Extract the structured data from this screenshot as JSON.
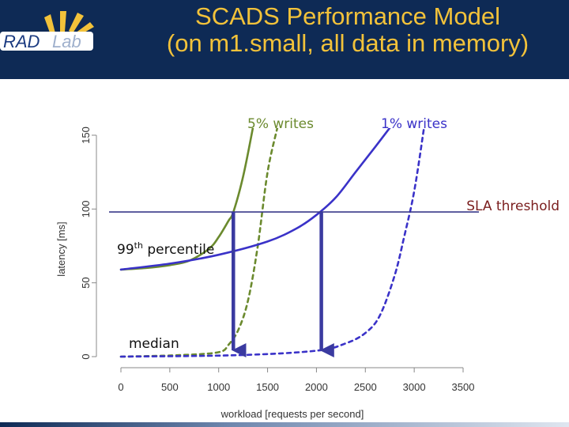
{
  "header": {
    "title_line1": "SCADS Performance Model",
    "title_line2": "(on m1.small, all data in memory)",
    "logo_text_left": "RAD",
    "logo_text_right": "Lab",
    "colors": {
      "background": "#0e2a55",
      "title": "#f2c23a",
      "logo_rad": "#1a3a80",
      "logo_lab": "#9fb0cc"
    }
  },
  "chart_data": {
    "type": "line",
    "xlabel": "workload [requests per second]",
    "ylabel": "latency [ms]",
    "xlim": [
      0,
      3500
    ],
    "ylim": [
      0,
      150
    ],
    "xticks": [
      0,
      500,
      1000,
      1500,
      2000,
      2500,
      3000,
      3500
    ],
    "yticks": [
      0,
      50,
      100,
      150
    ],
    "grid": false,
    "series": [
      {
        "name": "5% writes",
        "stat": "99th percentile",
        "style": "solid",
        "color": "#6b8a2e",
        "x": [
          0,
          250,
          500,
          700,
          900,
          1000,
          1100,
          1150,
          1250,
          1350
        ],
        "y": [
          59,
          60,
          62,
          65,
          73,
          81,
          92,
          98,
          122,
          155
        ]
      },
      {
        "name": "5% writes",
        "stat": "median",
        "style": "dashed",
        "color": "#6b8a2e",
        "x": [
          0,
          600,
          1000,
          1100,
          1200,
          1300,
          1400,
          1500,
          1600
        ],
        "y": [
          0,
          1,
          3,
          8,
          18,
          38,
          75,
          125,
          155
        ]
      },
      {
        "name": "1% writes",
        "stat": "99th percentile",
        "style": "solid",
        "color": "#3a32c8",
        "x": [
          0,
          500,
          1000,
          1500,
          1800,
          2000,
          2200,
          2400,
          2600,
          2750
        ],
        "y": [
          59,
          63,
          69,
          78,
          87,
          96,
          108,
          125,
          142,
          155
        ]
      },
      {
        "name": "1% writes",
        "stat": "median",
        "style": "dashed",
        "color": "#3a32c8",
        "x": [
          0,
          1200,
          2000,
          2300,
          2500,
          2650,
          2800,
          2900,
          3000,
          3100
        ],
        "y": [
          0,
          1,
          4,
          9,
          16,
          28,
          55,
          82,
          112,
          155
        ]
      }
    ],
    "sla_threshold": 98,
    "annotations": [
      {
        "text": "5% writes",
        "color": "#6b8a2e"
      },
      {
        "text": "1% writes",
        "color": "#3a32c8"
      },
      {
        "text": "SLA threshold",
        "color": "#7a1e1e"
      },
      {
        "text_before": "99",
        "superscript": "th",
        "text_after": " percentile",
        "color": "#111111"
      },
      {
        "text": "median",
        "color": "#111111"
      }
    ],
    "arrows": [
      {
        "x": 1150,
        "from_y": 98,
        "to_y": 0
      },
      {
        "x": 2050,
        "from_y": 98,
        "to_y": 0
      }
    ]
  }
}
